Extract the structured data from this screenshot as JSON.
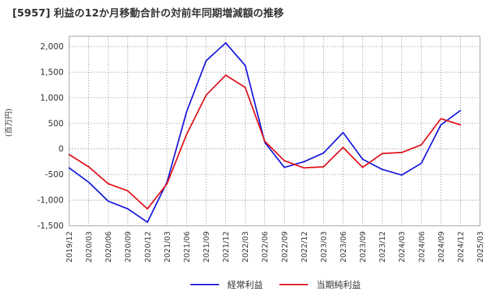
{
  "chart_data": {
    "type": "line",
    "title": "[5957]  利益の12か月移動合計の対前年同期増減額の推移",
    "ylabel": "(百万円)",
    "xlabel": "",
    "ylim": [
      -1500,
      2200
    ],
    "yticks": [
      2000,
      1500,
      1000,
      500,
      0,
      -500,
      -1000,
      -1500
    ],
    "ytick_labels": [
      "2,000",
      "1,500",
      "1,000",
      "500",
      "0",
      "-500",
      "-1,000",
      "-1,500"
    ],
    "categories": [
      "2019/12",
      "2020/03",
      "2020/06",
      "2020/09",
      "2020/12",
      "2021/03",
      "2021/06",
      "2021/09",
      "2021/12",
      "2022/03",
      "2022/06",
      "2022/09",
      "2022/12",
      "2023/03",
      "2023/06",
      "2023/09",
      "2023/12",
      "2024/03",
      "2024/06",
      "2024/09",
      "2024/12",
      "2025/03"
    ],
    "grid": true,
    "legend_position": "bottom",
    "series": [
      {
        "name": "経常利益",
        "color": "#1a1adb",
        "values": [
          -370,
          -650,
          -1020,
          -1170,
          -1430,
          -650,
          720,
          1720,
          2070,
          1630,
          130,
          -360,
          -250,
          -80,
          320,
          -200,
          -400,
          -510,
          -280,
          470,
          750,
          null
        ]
      },
      {
        "name": "当期純利益",
        "color": "#e0141e",
        "values": [
          -110,
          -350,
          -680,
          -820,
          -1170,
          -680,
          280,
          1050,
          1440,
          1200,
          150,
          -230,
          -370,
          -350,
          30,
          -360,
          -90,
          -70,
          80,
          590,
          470,
          null
        ]
      }
    ]
  }
}
